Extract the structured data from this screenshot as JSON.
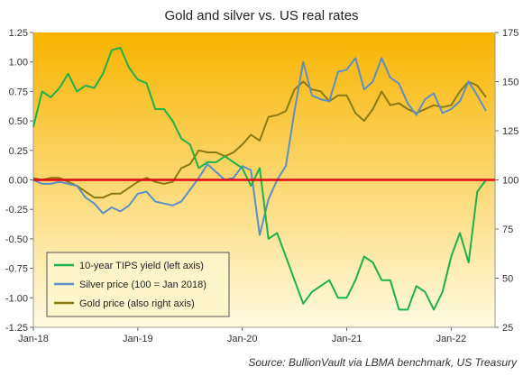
{
  "chart_data": {
    "type": "line",
    "title": "Gold and silver vs. US real rates",
    "source": "Source: BullionVault via LBMA benchmark, US Treasury",
    "x_ticks": [
      "Jan-18",
      "Jan-19",
      "Jan-20",
      "Jan-21",
      "Jan-22"
    ],
    "x_range": [
      "2018-01",
      "2022-05"
    ],
    "y_left": {
      "ylim": [
        -1.25,
        1.25
      ],
      "ticks": [
        "1.25",
        "1.00",
        "0.75",
        "0.50",
        "0.25",
        "0.00",
        "-0.25",
        "-0.50",
        "-0.75",
        "-1.00",
        "-1.25"
      ]
    },
    "y_right": {
      "ylim": [
        25,
        175
      ],
      "ticks": [
        "175",
        "150",
        "125",
        "100",
        "75",
        "50",
        "25"
      ]
    },
    "zero_line": 0,
    "series": [
      {
        "name": "10-year TIPS yield (left axis)",
        "axis": "left",
        "color": "#1bb24a",
        "points": [
          [
            "2018-01",
            0.45
          ],
          [
            "2018-02",
            0.75
          ],
          [
            "2018-03",
            0.7
          ],
          [
            "2018-04",
            0.78
          ],
          [
            "2018-05",
            0.9
          ],
          [
            "2018-06",
            0.75
          ],
          [
            "2018-07",
            0.8
          ],
          [
            "2018-08",
            0.78
          ],
          [
            "2018-09",
            0.9
          ],
          [
            "2018-10",
            1.1
          ],
          [
            "2018-11",
            1.12
          ],
          [
            "2018-12",
            0.95
          ],
          [
            "2019-01",
            0.85
          ],
          [
            "2019-02",
            0.82
          ],
          [
            "2019-03",
            0.6
          ],
          [
            "2019-04",
            0.6
          ],
          [
            "2019-05",
            0.5
          ],
          [
            "2019-06",
            0.35
          ],
          [
            "2019-07",
            0.3
          ],
          [
            "2019-08",
            0.1
          ],
          [
            "2019-09",
            0.15
          ],
          [
            "2019-10",
            0.15
          ],
          [
            "2019-11",
            0.2
          ],
          [
            "2019-12",
            0.15
          ],
          [
            "2020-01",
            0.1
          ],
          [
            "2020-02",
            -0.05
          ],
          [
            "2020-03",
            0.1
          ],
          [
            "2020-04",
            -0.5
          ],
          [
            "2020-05",
            -0.45
          ],
          [
            "2020-06",
            -0.65
          ],
          [
            "2020-07",
            -0.85
          ],
          [
            "2020-08",
            -1.05
          ],
          [
            "2020-09",
            -0.95
          ],
          [
            "2020-10",
            -0.9
          ],
          [
            "2020-11",
            -0.85
          ],
          [
            "2020-12",
            -1.0
          ],
          [
            "2021-01",
            -1.0
          ],
          [
            "2021-02",
            -0.85
          ],
          [
            "2021-03",
            -0.65
          ],
          [
            "2021-04",
            -0.7
          ],
          [
            "2021-05",
            -0.85
          ],
          [
            "2021-06",
            -0.85
          ],
          [
            "2021-07",
            -1.1
          ],
          [
            "2021-08",
            -1.1
          ],
          [
            "2021-09",
            -0.9
          ],
          [
            "2021-10",
            -0.95
          ],
          [
            "2021-11",
            -1.1
          ],
          [
            "2021-12",
            -0.95
          ],
          [
            "2022-01",
            -0.65
          ],
          [
            "2022-02",
            -0.45
          ],
          [
            "2022-03",
            -0.7
          ],
          [
            "2022-04",
            -0.1
          ],
          [
            "2022-05",
            0.0
          ]
        ]
      },
      {
        "name": "Silver price (100 = Jan 2018)",
        "axis": "right",
        "color": "#5b8fc7",
        "points": [
          [
            "2018-01",
            100
          ],
          [
            "2018-02",
            98
          ],
          [
            "2018-03",
            98
          ],
          [
            "2018-04",
            99
          ],
          [
            "2018-05",
            98
          ],
          [
            "2018-06",
            97
          ],
          [
            "2018-07",
            91
          ],
          [
            "2018-08",
            88
          ],
          [
            "2018-09",
            83
          ],
          [
            "2018-10",
            86
          ],
          [
            "2018-11",
            84
          ],
          [
            "2018-12",
            87
          ],
          [
            "2019-01",
            93
          ],
          [
            "2019-02",
            94
          ],
          [
            "2019-03",
            89
          ],
          [
            "2019-04",
            88
          ],
          [
            "2019-05",
            87
          ],
          [
            "2019-06",
            89
          ],
          [
            "2019-07",
            95
          ],
          [
            "2019-08",
            101
          ],
          [
            "2019-09",
            108
          ],
          [
            "2019-10",
            104
          ],
          [
            "2019-11",
            100
          ],
          [
            "2019-12",
            101
          ],
          [
            "2020-01",
            107
          ],
          [
            "2020-02",
            105
          ],
          [
            "2020-03",
            72
          ],
          [
            "2020-04",
            90
          ],
          [
            "2020-05",
            100
          ],
          [
            "2020-06",
            107
          ],
          [
            "2020-07",
            135
          ],
          [
            "2020-08",
            160
          ],
          [
            "2020-09",
            143
          ],
          [
            "2020-10",
            141
          ],
          [
            "2020-11",
            140
          ],
          [
            "2020-12",
            155
          ],
          [
            "2021-01",
            156
          ],
          [
            "2021-02",
            162
          ],
          [
            "2021-03",
            146
          ],
          [
            "2021-04",
            150
          ],
          [
            "2021-05",
            162
          ],
          [
            "2021-06",
            152
          ],
          [
            "2021-07",
            149
          ],
          [
            "2021-08",
            139
          ],
          [
            "2021-09",
            133
          ],
          [
            "2021-10",
            141
          ],
          [
            "2021-11",
            144
          ],
          [
            "2021-12",
            134
          ],
          [
            "2022-01",
            136
          ],
          [
            "2022-02",
            140
          ],
          [
            "2022-03",
            150
          ],
          [
            "2022-04",
            143
          ],
          [
            "2022-05",
            135
          ]
        ]
      },
      {
        "name": "Gold price (also right axis)",
        "axis": "right",
        "color": "#8a7a12",
        "points": [
          [
            "2018-01",
            101
          ],
          [
            "2018-02",
            100
          ],
          [
            "2018-03",
            101
          ],
          [
            "2018-04",
            101
          ],
          [
            "2018-05",
            99
          ],
          [
            "2018-06",
            97
          ],
          [
            "2018-07",
            94
          ],
          [
            "2018-08",
            91
          ],
          [
            "2018-09",
            91
          ],
          [
            "2018-10",
            93
          ],
          [
            "2018-11",
            93
          ],
          [
            "2018-12",
            96
          ],
          [
            "2019-01",
            99
          ],
          [
            "2019-02",
            101
          ],
          [
            "2019-03",
            99
          ],
          [
            "2019-04",
            98
          ],
          [
            "2019-05",
            99
          ],
          [
            "2019-06",
            106
          ],
          [
            "2019-07",
            108
          ],
          [
            "2019-08",
            115
          ],
          [
            "2019-09",
            114
          ],
          [
            "2019-10",
            114
          ],
          [
            "2019-11",
            112
          ],
          [
            "2019-12",
            114
          ],
          [
            "2020-01",
            118
          ],
          [
            "2020-02",
            123
          ],
          [
            "2020-03",
            120
          ],
          [
            "2020-04",
            132
          ],
          [
            "2020-05",
            133
          ],
          [
            "2020-06",
            135
          ],
          [
            "2020-07",
            146
          ],
          [
            "2020-08",
            150
          ],
          [
            "2020-09",
            146
          ],
          [
            "2020-10",
            145
          ],
          [
            "2020-11",
            140
          ],
          [
            "2020-12",
            143
          ],
          [
            "2021-01",
            143
          ],
          [
            "2021-02",
            134
          ],
          [
            "2021-03",
            130
          ],
          [
            "2021-04",
            136
          ],
          [
            "2021-05",
            145
          ],
          [
            "2021-06",
            138
          ],
          [
            "2021-07",
            139
          ],
          [
            "2021-08",
            136
          ],
          [
            "2021-09",
            134
          ],
          [
            "2021-10",
            136
          ],
          [
            "2021-11",
            138
          ],
          [
            "2021-12",
            137
          ],
          [
            "2022-01",
            138
          ],
          [
            "2022-02",
            145
          ],
          [
            "2022-03",
            150
          ],
          [
            "2022-04",
            148
          ],
          [
            "2022-05",
            142
          ]
        ]
      }
    ],
    "legend": {
      "position": "bottom-left",
      "entries": [
        "10-year TIPS yield (left axis)",
        "Silver price (100 = Jan 2018)",
        "Gold price (also right axis)"
      ]
    },
    "colors": {
      "background_top": "#f8b400",
      "background_bottom": "#fffbe1",
      "zero_line": "#e30613"
    }
  }
}
